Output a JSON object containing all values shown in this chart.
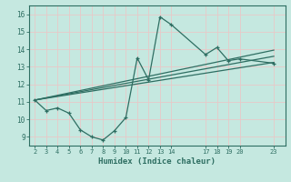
{
  "xlabel": "Humidex (Indice chaleur)",
  "bg_color": "#c5e8e0",
  "grid_color": "#e8c8c8",
  "line_color": "#2e6e62",
  "xticks": [
    2,
    3,
    4,
    5,
    6,
    7,
    8,
    9,
    10,
    11,
    12,
    13,
    14,
    17,
    18,
    19,
    20,
    23
  ],
  "yticks": [
    9,
    10,
    11,
    12,
    13,
    14,
    15,
    16
  ],
  "ylim": [
    8.5,
    16.5
  ],
  "xlim": [
    1.5,
    24.0
  ],
  "zigzag_x": [
    2,
    3,
    4,
    5,
    6,
    7,
    8,
    9,
    10,
    11,
    12,
    13,
    14,
    17,
    18,
    19,
    20,
    23
  ],
  "zigzag_y": [
    11.1,
    10.5,
    10.65,
    10.35,
    9.4,
    9.0,
    8.82,
    9.35,
    10.1,
    13.5,
    12.25,
    15.85,
    15.4,
    13.7,
    14.1,
    13.35,
    13.45,
    13.2
  ],
  "line1_x": [
    2,
    23
  ],
  "line1_y": [
    11.1,
    13.25
  ],
  "line2_x": [
    2,
    23
  ],
  "line2_y": [
    11.1,
    13.6
  ],
  "line3_x": [
    2,
    23
  ],
  "line3_y": [
    11.1,
    13.95
  ]
}
